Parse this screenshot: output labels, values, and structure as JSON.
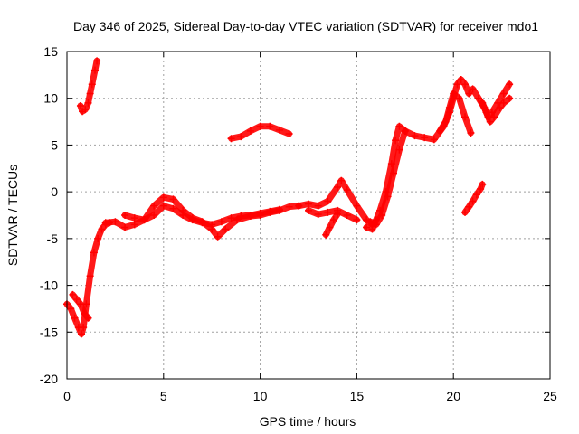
{
  "chart_data": {
    "type": "scatter",
    "title": "Day 346 of 2025, Sidereal Day-to-day VTEC variation (SDTVAR) for receiver mdo1",
    "xlabel": "GPS time / hours",
    "ylabel": "SDTVAR / TECUs",
    "xlim": [
      0,
      25
    ],
    "ylim": [
      -20,
      15
    ],
    "xticks": [
      "0",
      "5",
      "10",
      "15",
      "20",
      "25"
    ],
    "yticks": [
      "-20",
      "-15",
      "-10",
      "-5",
      "0",
      "5",
      "10",
      "15"
    ],
    "grid": true,
    "series_color": "#ff0000",
    "series": [
      {
        "name": "",
        "x": [
          0.0,
          0.2,
          0.4,
          0.6,
          0.75,
          0.85,
          1.0,
          1.2,
          1.4,
          1.6,
          1.8,
          2.0,
          2.2
        ],
        "y": [
          -12,
          -12.5,
          -13.5,
          -14.5,
          -15.2,
          -14.5,
          -12,
          -9,
          -6.5,
          -5,
          -4,
          -3.5,
          -3.3
        ]
      },
      {
        "name": "",
        "x": [
          0.3,
          0.5,
          0.7,
          0.9,
          1.1
        ],
        "y": [
          -11,
          -11.5,
          -12,
          -13,
          -13.5
        ]
      },
      {
        "name": "",
        "x": [
          0.7,
          0.8,
          0.95,
          1.1,
          1.2,
          1.3,
          1.45,
          1.55
        ],
        "y": [
          9.2,
          8.6,
          8.8,
          9.5,
          10.5,
          11.5,
          13,
          14
        ]
      },
      {
        "name": "",
        "x": [
          2.0,
          2.5,
          3.0,
          3.5,
          4.0,
          4.5,
          5.0,
          5.5,
          6.0,
          6.5,
          7.0,
          7.5,
          7.8,
          8.2,
          8.8,
          9.5,
          10.0,
          10.5,
          11.0,
          11.5,
          12.0
        ],
        "y": [
          -3.3,
          -3.2,
          -3.8,
          -3.5,
          -3.0,
          -1.5,
          -0.6,
          -0.8,
          -2.0,
          -2.8,
          -3.2,
          -4.0,
          -4.8,
          -4.0,
          -3.0,
          -2.6,
          -2.5,
          -2.2,
          -2.0,
          -1.6,
          -1.5
        ]
      },
      {
        "name": "",
        "x": [
          3.0,
          3.5,
          4.0,
          4.5,
          5.0,
          5.5,
          6.0,
          6.5,
          7.0,
          7.5,
          8.0,
          8.5,
          9.0,
          9.5,
          10.0,
          10.5,
          11.0
        ],
        "y": [
          -2.5,
          -2.8,
          -3.0,
          -2.5,
          -1.5,
          -1.8,
          -2.5,
          -3.0,
          -3.3,
          -3.5,
          -3.2,
          -2.8,
          -2.6,
          -2.5,
          -2.3,
          -2.1,
          -1.9
        ]
      },
      {
        "name": "",
        "x": [
          8.5,
          9.0,
          9.5,
          10.0,
          10.5,
          11.0,
          11.5
        ],
        "y": [
          5.7,
          5.9,
          6.5,
          7.0,
          7.0,
          6.6,
          6.2
        ]
      },
      {
        "name": "",
        "x": [
          12.0,
          12.5,
          13.0,
          13.5,
          14.0,
          14.2,
          14.5,
          15.0,
          15.5,
          15.8
        ],
        "y": [
          -1.5,
          -1.3,
          -1.5,
          -1.0,
          0.5,
          1.2,
          0.2,
          -1.5,
          -3.0,
          -3.5
        ]
      },
      {
        "name": "",
        "x": [
          12.5,
          13.0,
          13.5,
          14.0,
          14.5,
          15.0
        ],
        "y": [
          -2.0,
          -2.4,
          -2.2,
          -2.0,
          -2.5,
          -3.0
        ]
      },
      {
        "name": "",
        "x": [
          13.4,
          13.6,
          13.8,
          14.0
        ],
        "y": [
          -4.6,
          -3.8,
          -3.0,
          -2.4
        ]
      },
      {
        "name": "",
        "x": [
          15.5,
          15.8,
          16.0,
          16.2,
          16.5,
          16.8,
          17.0,
          17.2,
          17.5,
          18.0,
          18.5,
          19.0,
          19.5,
          19.8,
          20.0,
          20.2,
          20.4,
          20.6,
          20.8
        ],
        "y": [
          -3.8,
          -4.0,
          -3.0,
          -2.0,
          0.0,
          3.0,
          5.5,
          7.0,
          6.5,
          6.0,
          5.8,
          5.6,
          7.0,
          8.5,
          10.0,
          11.5,
          12.0,
          11.5,
          10.5
        ]
      },
      {
        "name": "",
        "x": [
          15.7,
          16.0,
          16.3,
          16.6,
          16.9,
          17.2,
          17.5
        ],
        "y": [
          -3.2,
          -3.5,
          -2.5,
          -0.5,
          2.0,
          4.5,
          6.5
        ]
      },
      {
        "name": "",
        "x": [
          19.3,
          19.6,
          19.8,
          20.0,
          20.3,
          20.6,
          20.9
        ],
        "y": [
          6.5,
          7.5,
          9.0,
          10.5,
          10.0,
          8.0,
          6.3
        ]
      },
      {
        "name": "",
        "x": [
          20.6,
          20.8,
          21.0,
          21.2,
          21.4,
          21.5
        ],
        "y": [
          -2.2,
          -1.6,
          -1.0,
          -0.3,
          0.3,
          0.8
        ]
      },
      {
        "name": "",
        "x": [
          21.0,
          21.3,
          21.6,
          21.8,
          22.0,
          22.3,
          22.6,
          22.9
        ],
        "y": [
          11.0,
          10.0,
          9.0,
          8.0,
          8.5,
          9.5,
          10.5,
          11.5
        ]
      },
      {
        "name": "",
        "x": [
          21.5,
          21.7,
          21.9,
          22.1,
          22.4,
          22.6,
          22.9
        ],
        "y": [
          9.5,
          8.5,
          7.5,
          8.0,
          9.0,
          9.5,
          10.0
        ]
      }
    ]
  }
}
